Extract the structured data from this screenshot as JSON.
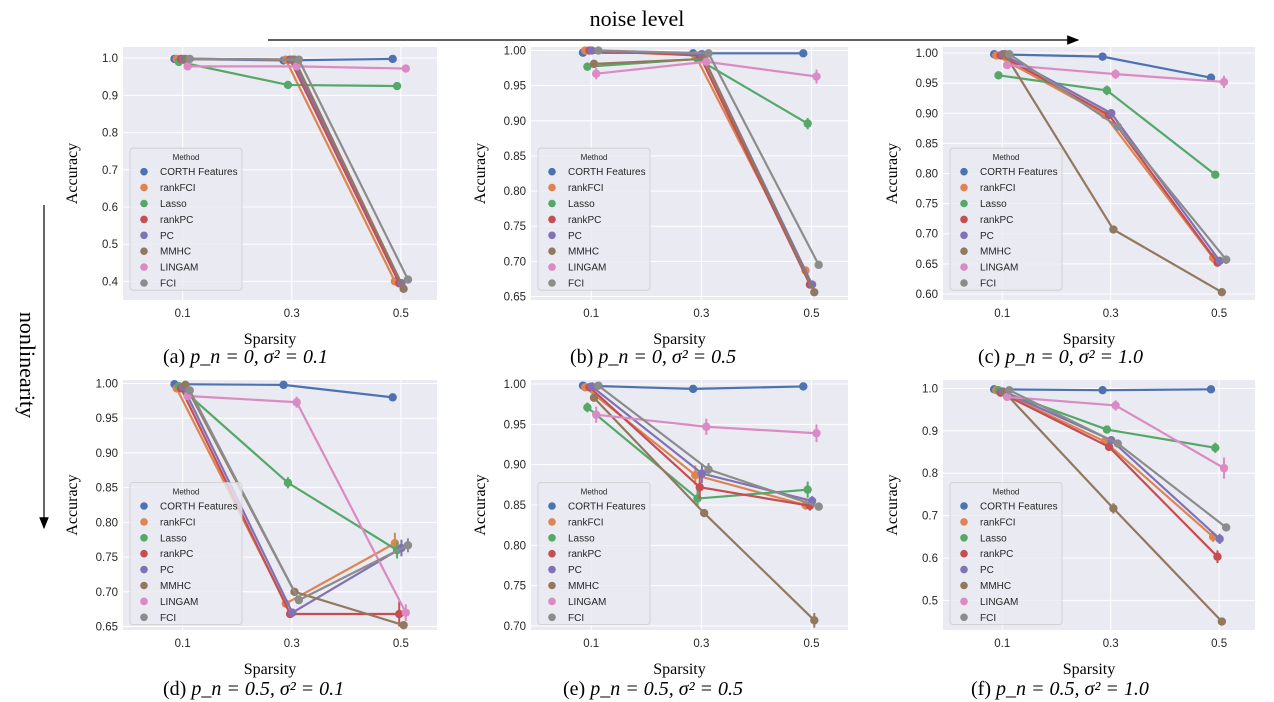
{
  "figure": {
    "noise_label": "noise level",
    "nonlinearity_label": "nonlinearity",
    "legend_title": "Method",
    "colors": {
      "CORTH Features": "#4c72b0",
      "rankFCI": "#dd8452",
      "Lasso": "#55a868",
      "rankPC": "#c44e52",
      "PC": "#8172b3",
      "MMHC": "#937860",
      "LINGAM": "#da8bc3",
      "FCI": "#8c8c8c"
    },
    "background_color": "#eaeaf2"
  },
  "chart_data": [
    {
      "type": "line",
      "caption_prefix": "(a) ",
      "caption_math": "p_n = 0, σ² = 0.1",
      "xlabel": "Sparsity",
      "ylabel": "Accuracy",
      "categories": [
        "0.1",
        "0.3",
        "0.5"
      ],
      "ylim": [
        0.35,
        1.03
      ],
      "yticks": [
        "0.4",
        "0.5",
        "0.6",
        "0.7",
        "0.8",
        "0.9",
        "1.0"
      ],
      "grid": true,
      "legend": "lower-left",
      "series": [
        {
          "name": "CORTH Features",
          "values": [
            0.998,
            0.994,
            0.998
          ],
          "err": [
            0.002,
            0.002,
            0.002
          ]
        },
        {
          "name": "rankFCI",
          "values": [
            0.998,
            0.996,
            0.4
          ],
          "err": [
            0.002,
            0.003,
            0.006
          ]
        },
        {
          "name": "Lasso",
          "values": [
            0.99,
            0.928,
            0.925
          ],
          "err": [
            0.003,
            0.006,
            0.004
          ]
        },
        {
          "name": "rankPC",
          "values": [
            0.998,
            0.996,
            0.395
          ],
          "err": [
            0.002,
            0.003,
            0.006
          ]
        },
        {
          "name": "PC",
          "values": [
            0.998,
            0.996,
            0.395
          ],
          "err": [
            0.002,
            0.003,
            0.006
          ]
        },
        {
          "name": "MMHC",
          "values": [
            0.998,
            0.996,
            0.38
          ],
          "err": [
            0.002,
            0.003,
            0.006
          ]
        },
        {
          "name": "LINGAM",
          "values": [
            0.978,
            0.978,
            0.972
          ],
          "err": [
            0.004,
            0.004,
            0.004
          ]
        },
        {
          "name": "FCI",
          "values": [
            0.998,
            0.996,
            0.405
          ],
          "err": [
            0.002,
            0.003,
            0.008
          ]
        }
      ]
    },
    {
      "type": "line",
      "caption_prefix": "(b) ",
      "caption_math": "p_n = 0, σ² = 0.5",
      "xlabel": "",
      "ylabel": "",
      "categories": [
        "0.1",
        "0.3",
        "0.5"
      ],
      "ylim": [
        0.645,
        1.005
      ],
      "yticks": [
        "0.65",
        "0.70",
        "0.75",
        "0.80",
        "0.85",
        "0.90",
        "0.95",
        "1.00"
      ],
      "grid": true,
      "legend": "lower-left",
      "series": [
        {
          "name": "CORTH Features",
          "values": [
            0.997,
            0.996,
            0.996
          ],
          "err": [
            0.002,
            0.002,
            0.002
          ]
        },
        {
          "name": "rankFCI",
          "values": [
            1.0,
            0.993,
            0.687
          ],
          "err": [
            0.001,
            0.003,
            0.004
          ]
        },
        {
          "name": "Lasso",
          "values": [
            0.977,
            0.988,
            0.896
          ],
          "err": [
            0.006,
            0.004,
            0.008
          ]
        },
        {
          "name": "rankPC",
          "values": [
            1.0,
            0.993,
            0.667
          ],
          "err": [
            0.001,
            0.003,
            0.004
          ]
        },
        {
          "name": "PC",
          "values": [
            1.0,
            0.995,
            0.667
          ],
          "err": [
            0.001,
            0.003,
            0.004
          ]
        },
        {
          "name": "MMHC",
          "values": [
            0.981,
            0.988,
            0.656
          ],
          "err": [
            0.003,
            0.004,
            0.003
          ]
        },
        {
          "name": "LINGAM",
          "values": [
            0.967,
            0.984,
            0.963
          ],
          "err": [
            0.008,
            0.005,
            0.01
          ]
        },
        {
          "name": "FCI",
          "values": [
            1.0,
            0.996,
            0.695
          ],
          "err": [
            0.001,
            0.002,
            0.003
          ]
        }
      ]
    },
    {
      "type": "line",
      "caption_prefix": "(c) ",
      "caption_math": "p_n = 0, σ² = 1.0",
      "xlabel": "",
      "ylabel": "",
      "categories": [
        "0.1",
        "0.3",
        "0.5"
      ],
      "ylim": [
        0.59,
        1.01
      ],
      "yticks": [
        "0.60",
        "0.65",
        "0.70",
        "0.75",
        "0.80",
        "0.85",
        "0.90",
        "0.95",
        "1.00"
      ],
      "grid": true,
      "legend": "lower-left",
      "series": [
        {
          "name": "CORTH Features",
          "values": [
            0.998,
            0.994,
            0.959
          ],
          "err": [
            0.002,
            0.002,
            0.006
          ]
        },
        {
          "name": "rankFCI",
          "values": [
            0.996,
            0.897,
            0.66
          ],
          "err": [
            0.002,
            0.006,
            0.008
          ]
        },
        {
          "name": "Lasso",
          "values": [
            0.963,
            0.938,
            0.798
          ],
          "err": [
            0.005,
            0.008,
            0.004
          ]
        },
        {
          "name": "rankPC",
          "values": [
            0.996,
            0.897,
            0.652
          ],
          "err": [
            0.002,
            0.006,
            0.006
          ]
        },
        {
          "name": "PC",
          "values": [
            0.998,
            0.9,
            0.655
          ],
          "err": [
            0.002,
            0.006,
            0.006
          ]
        },
        {
          "name": "MMHC",
          "values": [
            0.998,
            0.707,
            0.603
          ],
          "err": [
            0.002,
            0.004,
            0.003
          ]
        },
        {
          "name": "LINGAM",
          "values": [
            0.98,
            0.965,
            0.952
          ],
          "err": [
            0.006,
            0.008,
            0.01
          ]
        },
        {
          "name": "FCI",
          "values": [
            0.998,
            0.878,
            0.657
          ],
          "err": [
            0.002,
            0.006,
            0.007
          ]
        }
      ]
    },
    {
      "type": "line",
      "caption_prefix": "(d) ",
      "caption_math": "p_n = 0.5, σ² = 0.1",
      "xlabel": "",
      "ylabel": "",
      "categories": [
        "0.1",
        "0.3",
        "0.5"
      ],
      "ylim": [
        0.645,
        1.005
      ],
      "yticks": [
        "0.65",
        "0.70",
        "0.75",
        "0.80",
        "0.85",
        "0.90",
        "0.95",
        "1.00"
      ],
      "grid": true,
      "legend": "lower-left",
      "series": [
        {
          "name": "CORTH Features",
          "values": [
            0.999,
            0.998,
            0.98
          ],
          "err": [
            0.001,
            0.002,
            0.002
          ]
        },
        {
          "name": "rankFCI",
          "values": [
            0.993,
            0.683,
            0.77
          ],
          "err": [
            0.002,
            0.006,
            0.015
          ]
        },
        {
          "name": "Lasso",
          "values": [
            0.996,
            0.857,
            0.76
          ],
          "err": [
            0.002,
            0.008,
            0.012
          ]
        },
        {
          "name": "rankPC",
          "values": [
            0.993,
            0.668,
            0.668
          ],
          "err": [
            0.002,
            0.005,
            0.018
          ]
        },
        {
          "name": "PC",
          "values": [
            0.995,
            0.67,
            0.763
          ],
          "err": [
            0.002,
            0.006,
            0.012
          ]
        },
        {
          "name": "MMHC",
          "values": [
            0.998,
            0.7,
            0.652
          ],
          "err": [
            0.002,
            0.005,
            0.004
          ]
        },
        {
          "name": "LINGAM",
          "values": [
            0.982,
            0.973,
            0.67
          ],
          "err": [
            0.004,
            0.008,
            0.012
          ]
        },
        {
          "name": "FCI",
          "values": [
            0.99,
            0.688,
            0.767
          ],
          "err": [
            0.003,
            0.005,
            0.01
          ]
        }
      ]
    },
    {
      "type": "line",
      "caption_prefix": "(e) ",
      "caption_math": "p_n = 0.5, σ² = 0.5",
      "xlabel": "",
      "ylabel": "",
      "categories": [
        "0.1",
        "0.3",
        "0.5"
      ],
      "ylim": [
        0.695,
        1.005
      ],
      "yticks": [
        "0.70",
        "0.75",
        "0.80",
        "0.85",
        "0.90",
        "0.95",
        "1.00"
      ],
      "grid": true,
      "legend": "lower-left",
      "series": [
        {
          "name": "CORTH Features",
          "values": [
            0.998,
            0.994,
            0.997
          ],
          "err": [
            0.001,
            0.002,
            0.002
          ]
        },
        {
          "name": "rankFCI",
          "values": [
            0.996,
            0.887,
            0.85
          ],
          "err": [
            0.002,
            0.012,
            0.006
          ]
        },
        {
          "name": "Lasso",
          "values": [
            0.971,
            0.858,
            0.869
          ],
          "err": [
            0.006,
            0.01,
            0.01
          ]
        },
        {
          "name": "rankPC",
          "values": [
            0.996,
            0.872,
            0.849
          ],
          "err": [
            0.002,
            0.014,
            0.006
          ]
        },
        {
          "name": "PC",
          "values": [
            0.997,
            0.889,
            0.855
          ],
          "err": [
            0.002,
            0.012,
            0.006
          ]
        },
        {
          "name": "MMHC",
          "values": [
            0.983,
            0.84,
            0.707
          ],
          "err": [
            0.004,
            0.005,
            0.009
          ]
        },
        {
          "name": "LINGAM",
          "values": [
            0.962,
            0.947,
            0.939
          ],
          "err": [
            0.01,
            0.01,
            0.011
          ]
        },
        {
          "name": "FCI",
          "values": [
            0.998,
            0.894,
            0.848
          ],
          "err": [
            0.002,
            0.008,
            0.004
          ]
        }
      ]
    },
    {
      "type": "line",
      "caption_prefix": "(f) ",
      "caption_math": "p_n = 0.5, σ² = 1.0",
      "xlabel": "",
      "ylabel": "",
      "categories": [
        "0.1",
        "0.3",
        "0.5"
      ],
      "ylim": [
        0.43,
        1.02
      ],
      "yticks": [
        "0.5",
        "0.6",
        "0.7",
        "0.8",
        "0.9",
        "1.0"
      ],
      "grid": true,
      "legend": "lower-left",
      "series": [
        {
          "name": "CORTH Features",
          "values": [
            0.998,
            0.996,
            0.998
          ],
          "err": [
            0.002,
            0.002,
            0.002
          ]
        },
        {
          "name": "rankFCI",
          "values": [
            0.996,
            0.875,
            0.65
          ],
          "err": [
            0.002,
            0.008,
            0.012
          ]
        },
        {
          "name": "Lasso",
          "values": [
            0.996,
            0.903,
            0.86
          ],
          "err": [
            0.002,
            0.008,
            0.012
          ]
        },
        {
          "name": "rankPC",
          "values": [
            0.99,
            0.862,
            0.603
          ],
          "err": [
            0.002,
            0.008,
            0.015
          ]
        },
        {
          "name": "PC",
          "values": [
            0.993,
            0.878,
            0.645
          ],
          "err": [
            0.002,
            0.008,
            0.012
          ]
        },
        {
          "name": "MMHC",
          "values": [
            0.99,
            0.717,
            0.45
          ],
          "err": [
            0.002,
            0.012,
            0.006
          ]
        },
        {
          "name": "LINGAM",
          "values": [
            0.98,
            0.96,
            0.812
          ],
          "err": [
            0.006,
            0.012,
            0.025
          ]
        },
        {
          "name": "FCI",
          "values": [
            0.996,
            0.87,
            0.672
          ],
          "err": [
            0.002,
            0.008,
            0.008
          ]
        }
      ]
    }
  ]
}
